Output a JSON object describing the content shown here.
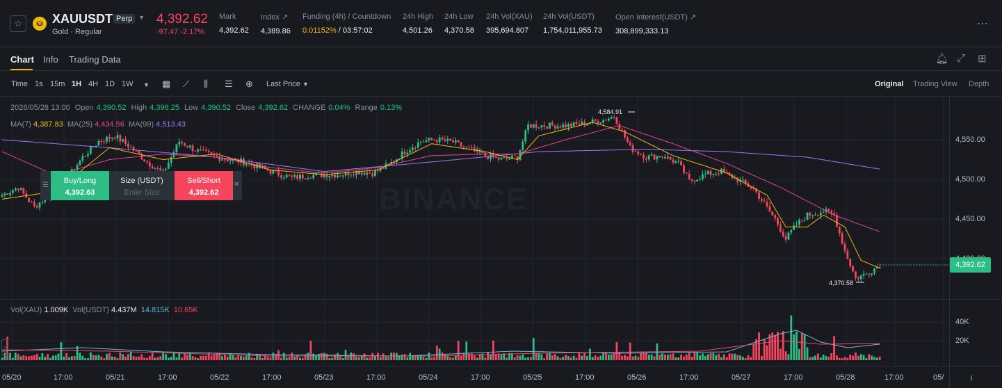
{
  "header": {
    "symbol": "XAUUSDT",
    "perp_badge": "Perp",
    "subtitle": "Gold · Regular",
    "last_price": "4,392.62",
    "change": "-97.47 -2.17%",
    "stats": [
      {
        "label": "Mark",
        "value": "4,392.62"
      },
      {
        "label": "Index ↗",
        "value": "4,389.86"
      },
      {
        "label": "Funding (4h) / Countdown",
        "value_funding": "0.01152%",
        "value_countdown": " / 03:57:02"
      },
      {
        "label": "24h High",
        "value": "4,501.26"
      },
      {
        "label": "24h Low",
        "value": "4,370.58"
      },
      {
        "label": "24h Vol(XAU)",
        "value": "395,694.807"
      },
      {
        "label": "24h Vol(USDT)",
        "value": "1,754,011,955.73"
      },
      {
        "label": "Open Interest(USDT) ↗",
        "value": "308,899,333.13"
      }
    ]
  },
  "tabs": [
    "Chart",
    "Info",
    "Trading Data"
  ],
  "toolbar": {
    "time_label": "Time",
    "intervals": [
      "1s",
      "15m",
      "1H",
      "4H",
      "1D",
      "1W"
    ],
    "selected_interval": "1H",
    "price_type": "Last Price",
    "views": [
      "Original",
      "Trading View",
      "Depth"
    ],
    "selected_view": "Original"
  },
  "candle_info": {
    "date": "2026/05/28 13:00",
    "open_label": "Open",
    "open": "4,390.52",
    "high_label": "High",
    "high": "4,396.25",
    "low_label": "Low",
    "low": "4,390.52",
    "close_label": "Close",
    "close": "4,392.62",
    "change_label": "CHANGE",
    "change": "0.04%",
    "range_label": "Range",
    "range": "0.13%"
  },
  "ma": {
    "ma7_label": "MA(7)",
    "ma7": "4,387.83",
    "ma25_label": "MA(25)",
    "ma25": "4,434.56",
    "ma99_label": "MA(99)",
    "ma99": "4,513.43"
  },
  "trade_panel": {
    "buy_label": "Buy/Long",
    "buy_price": "4,392.63",
    "size_label": "Size (USDT)",
    "size_placeholder": "Enter Size",
    "sell_label": "Sell/Short",
    "sell_price": "4,392.62"
  },
  "watermark": "BINANCE",
  "volume_info": {
    "vol_xau_label": "Vol(XAU)",
    "vol_xau": "1.009K",
    "vol_usdt_label": "Vol(USDT)",
    "vol_usdt": "4.437M",
    "ma_a": "14.815K",
    "ma_b": "10.65K"
  },
  "colors": {
    "up": "#2ebd85",
    "down": "#f6465d",
    "ma7": "#f0b90b",
    "ma25": "#e84393",
    "ma99": "#9a7cf0",
    "vol_ma_a": "#5bc0de"
  },
  "chart_data": {
    "type": "candlestick",
    "interval": "1H",
    "price_axis_ticks": [
      "4,550.00",
      "4,500.00",
      "4,450.00",
      "4,400.00"
    ],
    "volume_axis_ticks": [
      "40K",
      "20K"
    ],
    "x_ticks": [
      "05/20",
      "17:00",
      "05/21",
      "17:00",
      "05/22",
      "17:00",
      "05/23",
      "17:00",
      "05/24",
      "17:00",
      "05/25",
      "17:00",
      "05/26",
      "17:00",
      "05/27",
      "17:00",
      "05/28",
      "17:00",
      "05/"
    ],
    "current_price": "4,392.62",
    "max_marker": "4,584.91",
    "min_marker": "4,370.58",
    "ylim": [
      4350,
      4600
    ],
    "price_anchors": [
      [
        0,
        4480
      ],
      [
        6,
        4490
      ],
      [
        12,
        4465
      ],
      [
        18,
        4482
      ],
      [
        24,
        4500
      ],
      [
        30,
        4528
      ],
      [
        36,
        4548
      ],
      [
        42,
        4555
      ],
      [
        48,
        4540
      ],
      [
        54,
        4522
      ],
      [
        60,
        4508
      ],
      [
        66,
        4548
      ],
      [
        72,
        4537
      ],
      [
        78,
        4530
      ],
      [
        84,
        4525
      ],
      [
        90,
        4522
      ],
      [
        96,
        4515
      ],
      [
        102,
        4508
      ],
      [
        108,
        4502
      ],
      [
        114,
        4505
      ],
      [
        120,
        4506
      ],
      [
        126,
        4506
      ],
      [
        132,
        4510
      ],
      [
        138,
        4508
      ],
      [
        144,
        4518
      ],
      [
        150,
        4535
      ],
      [
        156,
        4548
      ],
      [
        162,
        4550
      ],
      [
        168,
        4547
      ],
      [
        174,
        4538
      ],
      [
        180,
        4530
      ],
      [
        186,
        4525
      ],
      [
        192,
        4528
      ],
      [
        196,
        4568
      ],
      [
        202,
        4568
      ],
      [
        210,
        4568
      ],
      [
        216,
        4570
      ],
      [
        224,
        4575
      ],
      [
        228,
        4580
      ],
      [
        234,
        4540
      ],
      [
        240,
        4528
      ],
      [
        246,
        4530
      ],
      [
        252,
        4520
      ],
      [
        256,
        4498
      ],
      [
        262,
        4506
      ],
      [
        268,
        4510
      ],
      [
        274,
        4500
      ],
      [
        280,
        4488
      ],
      [
        288,
        4450
      ],
      [
        292,
        4425
      ],
      [
        296,
        4443
      ],
      [
        300,
        4455
      ],
      [
        306,
        4460
      ],
      [
        310,
        4455
      ],
      [
        314,
        4410
      ],
      [
        318,
        4375
      ],
      [
        322,
        4381
      ],
      [
        327,
        4392
      ]
    ],
    "ma7_anchors": [
      [
        0,
        4475
      ],
      [
        20,
        4485
      ],
      [
        40,
        4540
      ],
      [
        60,
        4525
      ],
      [
        80,
        4532
      ],
      [
        100,
        4512
      ],
      [
        120,
        4506
      ],
      [
        140,
        4512
      ],
      [
        160,
        4545
      ],
      [
        180,
        4535
      ],
      [
        192,
        4525
      ],
      [
        200,
        4555
      ],
      [
        220,
        4572
      ],
      [
        232,
        4560
      ],
      [
        250,
        4530
      ],
      [
        270,
        4508
      ],
      [
        285,
        4480
      ],
      [
        292,
        4440
      ],
      [
        300,
        4440
      ],
      [
        306,
        4455
      ],
      [
        314,
        4440
      ],
      [
        320,
        4398
      ],
      [
        327,
        4388
      ]
    ],
    "ma25_anchors": [
      [
        0,
        4535
      ],
      [
        20,
        4505
      ],
      [
        40,
        4525
      ],
      [
        60,
        4532
      ],
      [
        80,
        4528
      ],
      [
        100,
        4515
      ],
      [
        120,
        4508
      ],
      [
        140,
        4515
      ],
      [
        160,
        4530
      ],
      [
        180,
        4532
      ],
      [
        192,
        4532
      ],
      [
        210,
        4550
      ],
      [
        230,
        4568
      ],
      [
        250,
        4545
      ],
      [
        270,
        4520
      ],
      [
        290,
        4490
      ],
      [
        310,
        4455
      ],
      [
        327,
        4434
      ]
    ],
    "ma99_anchors": [
      [
        0,
        4550
      ],
      [
        40,
        4540
      ],
      [
        80,
        4528
      ],
      [
        120,
        4510
      ],
      [
        160,
        4522
      ],
      [
        200,
        4535
      ],
      [
        240,
        4538
      ],
      [
        270,
        4535
      ],
      [
        300,
        4528
      ],
      [
        327,
        4513
      ]
    ]
  }
}
